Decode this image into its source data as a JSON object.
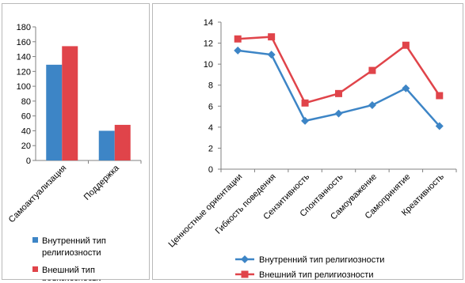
{
  "chart_data": [
    {
      "type": "bar",
      "categories": [
        "Самоактуализация",
        "Поддержка"
      ],
      "series": [
        {
          "name": "Внутренний тип религиозности",
          "values": [
            129,
            40
          ],
          "color": "#3d85c6"
        },
        {
          "name": "Внешний тип религиозности",
          "values": [
            154,
            48
          ],
          "color": "#e0444a"
        }
      ],
      "ylim": [
        0,
        180
      ],
      "yticks": [
        0,
        20,
        40,
        60,
        80,
        100,
        120,
        140,
        160,
        180
      ],
      "grid": false,
      "legend": "bottom"
    },
    {
      "type": "line",
      "categories": [
        "Ценностные ориентации",
        "Гибкость поведения",
        "Сензитивность",
        "Спонтанность",
        "Самоуважение",
        "Самопринятие",
        "Креативность"
      ],
      "series": [
        {
          "name": "Внутренний тип религиозности",
          "values": [
            11.3,
            10.9,
            4.6,
            5.3,
            6.1,
            7.7,
            4.1
          ],
          "color": "#3d85c6",
          "marker": "diamond"
        },
        {
          "name": "Внешний тип религиозности",
          "values": [
            12.4,
            12.6,
            6.3,
            7.2,
            9.4,
            11.8,
            7.0
          ],
          "color": "#e0444a",
          "marker": "square"
        }
      ],
      "ylim": [
        0,
        14
      ],
      "yticks": [
        0,
        2,
        4,
        6,
        8,
        10,
        12,
        14
      ],
      "grid": false,
      "legend": "bottom"
    }
  ]
}
